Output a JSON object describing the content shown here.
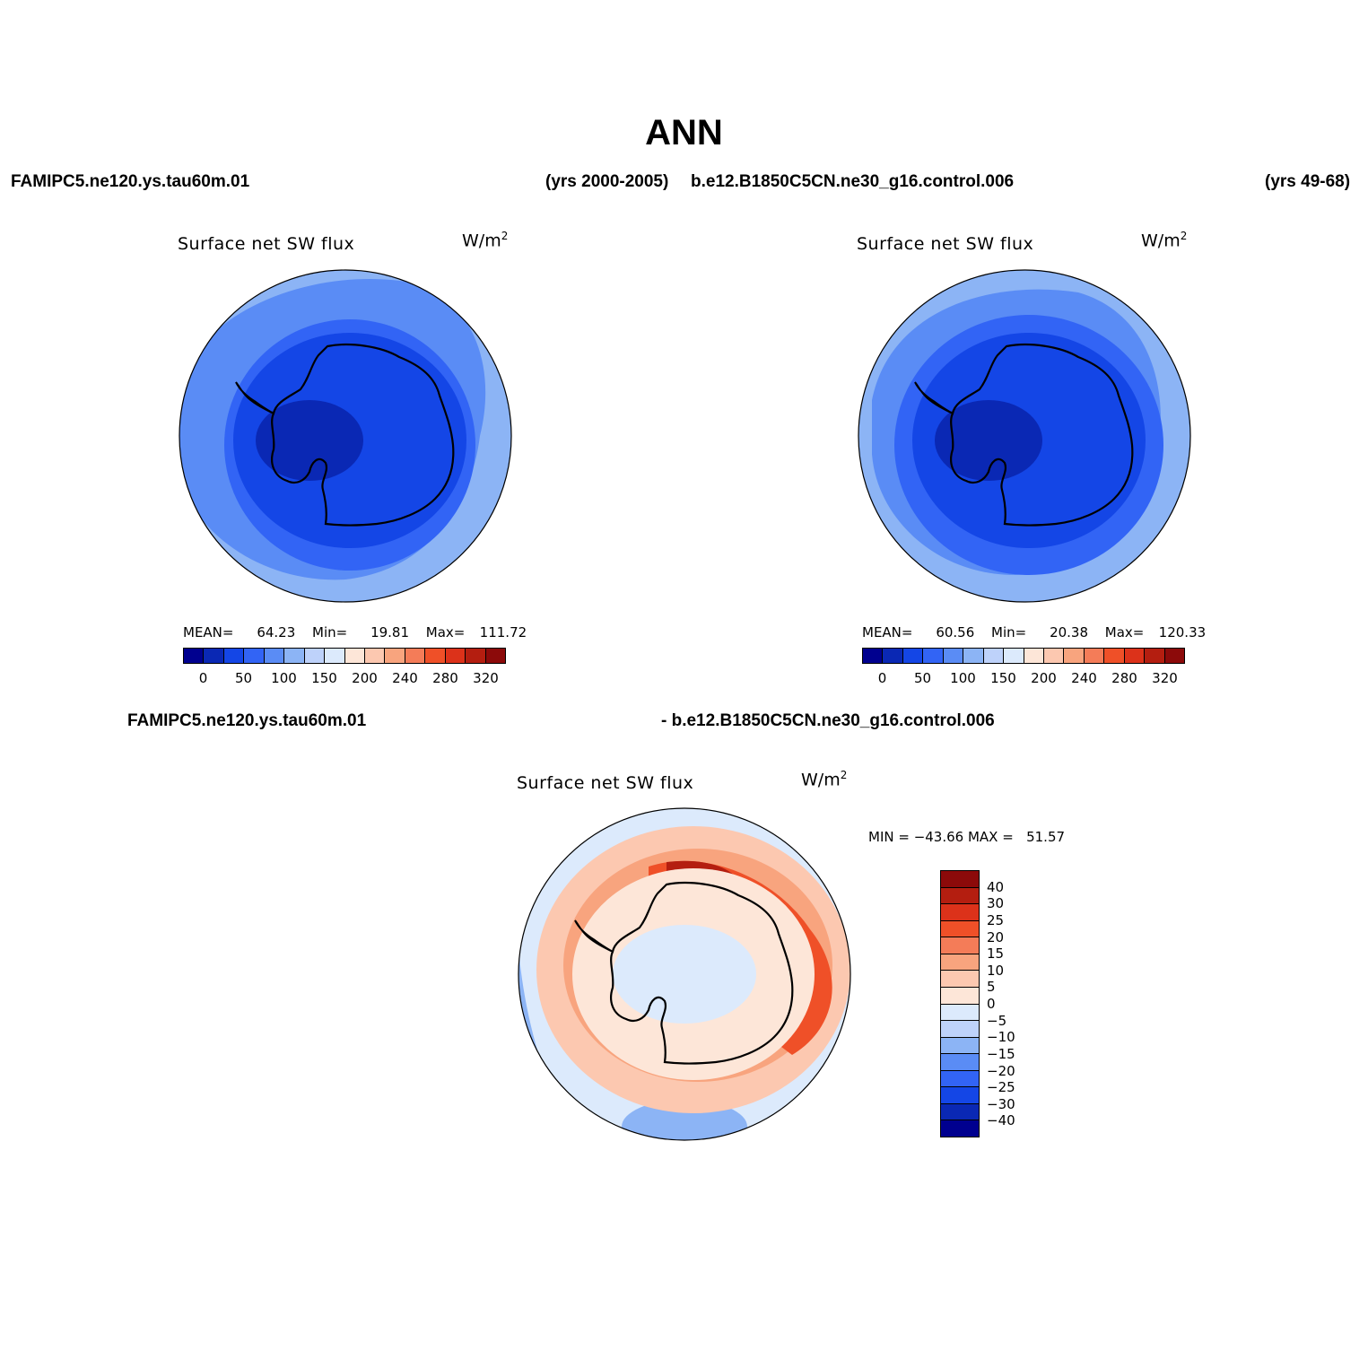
{
  "title": "ANN",
  "top_left_case": "FAMIPC5.ne120.ys.tau60m.01",
  "top_left_years": "(yrs 2000-2005)",
  "top_right_case": "b.e12.B1850C5CN.ne30_g16.control.006",
  "top_right_years": "(yrs 49-68)",
  "diff_case_a": "FAMIPC5.ne120.ys.tau60m.01",
  "diff_case_b": "- b.e12.B1850C5CN.ne30_g16.control.006",
  "panels": [
    {
      "variable": "Surface net SW flux",
      "units_base": "W/m",
      "units_exp": "2",
      "stats": {
        "mean_label": "MEAN=",
        "mean": "64.23",
        "min_label": "Min=",
        "min": "19.81",
        "max_label": "Max=",
        "max": "111.72"
      }
    },
    {
      "variable": "Surface net SW flux",
      "units_base": "W/m",
      "units_exp": "2",
      "stats": {
        "mean_label": "MEAN=",
        "mean": "60.56",
        "min_label": "Min=",
        "min": "20.38",
        "max_label": "Max=",
        "max": "120.33"
      }
    },
    {
      "variable": "Surface net SW flux",
      "units_base": "W/m",
      "units_exp": "2",
      "stats_text": "MIN = −43.66 MAX =   51.57"
    }
  ],
  "abs_colorbar": {
    "colors": [
      "#00008f",
      "#0a28b4",
      "#1446e6",
      "#3264f5",
      "#5a8cf5",
      "#8cb4f5",
      "#bed2fa",
      "#dceafc",
      "#fde6d8",
      "#fcc8b0",
      "#f8a47e",
      "#f47c58",
      "#ef5028",
      "#dc321a",
      "#b41e10",
      "#8c0a0a"
    ],
    "labels": [
      "0",
      "50",
      "100",
      "150",
      "200",
      "240",
      "280",
      "320"
    ]
  },
  "diff_colorbar": {
    "colors": [
      "#8c0a0a",
      "#b41e10",
      "#dc321a",
      "#ef5028",
      "#f47c58",
      "#f8a47e",
      "#fcc8b0",
      "#fde6d8",
      "#dceafc",
      "#bed2fa",
      "#8cb4f5",
      "#5a8cf5",
      "#3264f5",
      "#1446e6",
      "#0a28b4",
      "#00008f"
    ],
    "labels": [
      "40",
      "30",
      "25",
      "20",
      "15",
      "10",
      "5",
      "0",
      "−5",
      "−10",
      "−15",
      "−20",
      "−25",
      "−30",
      "−40"
    ]
  },
  "map_colors": {
    "outer": "#8cb4f5",
    "band2": "#5a8cf5",
    "band3": "#3264f5",
    "band4": "#1446e6",
    "inner": "#0a28b4",
    "diff_ocean": "#dceafc",
    "diff_pos1": "#fde6d8",
    "diff_pos2": "#fcc8b0",
    "diff_pos3": "#f8a47e",
    "diff_pos4": "#ef5028",
    "diff_pos5": "#b41e10",
    "diff_neg1": "#bed2fa",
    "diff_neg2": "#8cb4f5",
    "coast": "#000000"
  }
}
